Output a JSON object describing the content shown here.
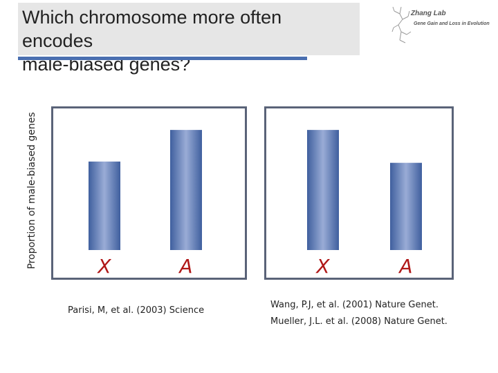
{
  "header": {
    "title_line1": "Which chromosome more often encodes",
    "title_line2": "male-biased genes?"
  },
  "logo": {
    "name": "Zhang Lab",
    "tagline": "Gene Gain and Loss in Evolution"
  },
  "chart_data": [
    {
      "type": "bar",
      "categories": [
        "X",
        "A"
      ],
      "values": [
        0.7,
        0.95
      ],
      "ylabel": "Proportion of male-biased genes",
      "ylim": [
        0,
        1.12
      ],
      "citation_lines": [
        "Parisi, M, et al. (2003) Science"
      ],
      "bar_color": "#3f5f9e"
    },
    {
      "type": "bar",
      "categories": [
        "X",
        "A"
      ],
      "values": [
        0.95,
        0.69
      ],
      "ylim": [
        0,
        1.12
      ],
      "citation_lines": [
        "Wang, P.J, et al. (2001) Nature Genet.",
        "Mueller, J.L. et al. (2008) Nature Genet."
      ],
      "bar_color": "#3f5f9e"
    }
  ],
  "colors": {
    "bar": "#3f5f9e",
    "category_label": "#b01818",
    "frame": "#5a6378",
    "title_rule": "#4a6fb0"
  }
}
